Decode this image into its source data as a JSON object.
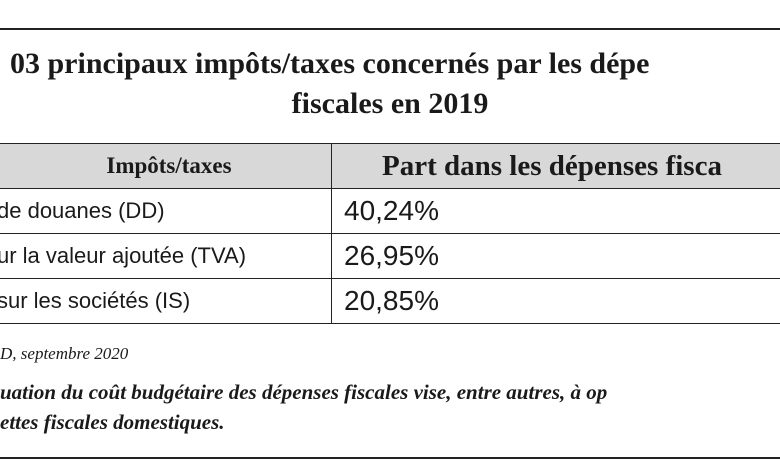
{
  "title": {
    "line1": "03 principaux impôts/taxes concernés par les dépe",
    "line2": "fiscales en 2019"
  },
  "table": {
    "headers": [
      "Impôts/taxes",
      "Part dans les dépenses fisca"
    ],
    "rows": [
      {
        "tax": "de douanes (DD)",
        "share": "40,24%"
      },
      {
        "tax": "ur la valeur ajoutée (TVA)",
        "share": "26,95%"
      },
      {
        "tax": "sur les sociétés (IS)",
        "share": "20,85%"
      }
    ]
  },
  "source": "D, septembre 2020",
  "note": {
    "line1": "uation du coût budgétaire des dépenses fiscales vise, entre autres, à op",
    "line2": "ettes fiscales domestiques."
  }
}
